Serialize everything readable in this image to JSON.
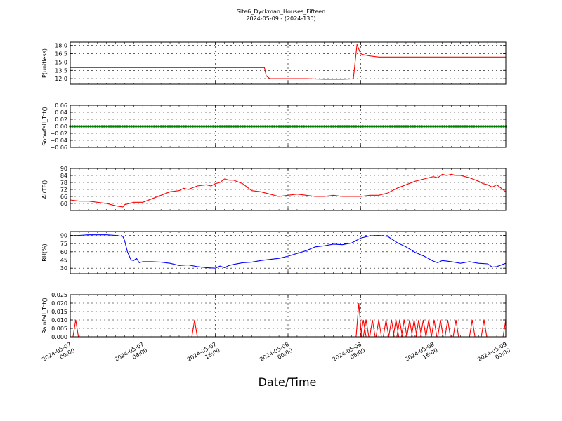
{
  "title_line1": "Site6_Dyckman_Houses_Fifteen",
  "title_line2": "2024-05-09 - (2024-130)",
  "xlabel": "Date/Time",
  "x_ticks": [
    {
      "t": 0,
      "label": [
        "2024-05-07",
        "00:00"
      ]
    },
    {
      "t": 8,
      "label": [
        "2024-05-07",
        "08:00"
      ]
    },
    {
      "t": 16,
      "label": [
        "2024-05-07",
        "16:00"
      ]
    },
    {
      "t": 24,
      "label": [
        "2024-05-08",
        "00:00"
      ]
    },
    {
      "t": 32,
      "label": [
        "2024-05-08",
        "08:00"
      ]
    },
    {
      "t": 40,
      "label": [
        "2024-05-08",
        "16:00"
      ]
    },
    {
      "t": 48,
      "label": [
        "2024-05-09",
        "00:00"
      ]
    }
  ],
  "chart_data": [
    {
      "type": "line",
      "ylabel": "P(unitless)",
      "ylim": [
        11.0,
        18.6
      ],
      "yticks": [
        "12.0",
        "13.5",
        "15.0",
        "16.5",
        "18.0"
      ],
      "ytick_values": [
        12.0,
        13.5,
        15.0,
        16.5,
        18.0
      ],
      "color": "#ff0000",
      "marker": "none",
      "x_unit": "hours from 2024-05-07 00:00",
      "x": [
        0,
        21.4,
        21.6,
        22,
        24,
        26,
        28,
        30,
        31,
        31.2,
        31.6,
        32,
        32.4,
        33,
        34,
        36,
        40,
        44,
        48
      ],
      "y": [
        14.0,
        14.0,
        12.5,
        12.0,
        12.0,
        12.0,
        11.9,
        11.9,
        11.95,
        12.0,
        18.2,
        16.5,
        16.3,
        16.1,
        15.9,
        15.9,
        15.9,
        15.9,
        15.9
      ]
    },
    {
      "type": "scatter",
      "ylabel": "Snowfall_Tot()",
      "ylim": [
        -0.06,
        0.06
      ],
      "yticks": [
        "0.06",
        "0.04",
        "0.02",
        "0.00",
        "−0.02",
        "−0.04",
        "−0.06"
      ],
      "ytick_values": [
        0.06,
        0.04,
        0.02,
        0.0,
        -0.02,
        -0.04,
        -0.06
      ],
      "color": "#008000",
      "marker": "dot",
      "x_unit": "hours from 2024-05-07 00:00",
      "constant_value": 0.0
    },
    {
      "type": "line",
      "ylabel": "AirTF()",
      "ylim": [
        54,
        90
      ],
      "yticks": [
        "60",
        "66",
        "72",
        "78",
        "84",
        "90"
      ],
      "ytick_values": [
        60,
        66,
        72,
        78,
        84,
        90
      ],
      "color": "#ff0000",
      "marker": "none",
      "x_unit": "hours from 2024-05-07 00:00",
      "x": [
        0,
        1,
        2,
        3,
        4,
        5,
        5.8,
        6,
        7,
        8,
        9,
        10,
        11,
        12,
        12.5,
        13,
        14,
        15,
        15.5,
        16,
        16.5,
        17,
        17.5,
        18,
        19,
        20,
        21,
        22,
        23,
        24,
        25,
        26,
        27,
        28,
        29,
        30,
        31,
        32,
        33,
        34,
        35,
        36,
        37,
        38,
        39,
        40,
        40.5,
        41,
        41.5,
        42,
        42.5,
        43,
        44,
        45,
        45.5,
        46,
        46.5,
        47,
        48
      ],
      "y": [
        63,
        62,
        62,
        61,
        60,
        58,
        57,
        59,
        61,
        61,
        64,
        67,
        70,
        71,
        73,
        72,
        75,
        76,
        75,
        77,
        78,
        81,
        80,
        80,
        77,
        71,
        70,
        68,
        66,
        67,
        68,
        67,
        66,
        66,
        67,
        66,
        66,
        66,
        67,
        67,
        69,
        73,
        76,
        79,
        81,
        83,
        82,
        85,
        84,
        85,
        84,
        84,
        82,
        79,
        77,
        76,
        74,
        76,
        70
      ]
    },
    {
      "type": "line",
      "ylabel": "RH(%)",
      "ylim": [
        20,
        97
      ],
      "yticks": [
        "30",
        "45",
        "60",
        "75",
        "90"
      ],
      "ytick_values": [
        30,
        45,
        60,
        75,
        90
      ],
      "color": "#0000ff",
      "marker": "none",
      "x_unit": "hours from 2024-05-07 00:00",
      "x": [
        0,
        1,
        2,
        3,
        4,
        5,
        5.8,
        6,
        6.3,
        6.7,
        7,
        7.3,
        7.6,
        8,
        9,
        10,
        11,
        12,
        13,
        14,
        15,
        16,
        16.5,
        17,
        17.5,
        18,
        19,
        20,
        21,
        22,
        23,
        24,
        25,
        26,
        27,
        28,
        29,
        30,
        31,
        32,
        33,
        34,
        35,
        36,
        37,
        38,
        39,
        40,
        40.5,
        41,
        42,
        43,
        44,
        45,
        46,
        46.5,
        47,
        48
      ],
      "y": [
        89,
        90,
        91,
        91,
        91,
        90,
        88,
        80,
        60,
        45,
        44,
        48,
        40,
        42,
        42,
        41,
        39,
        35,
        36,
        33,
        31,
        30,
        34,
        31,
        35,
        37,
        40,
        41,
        44,
        46,
        48,
        52,
        57,
        62,
        69,
        71,
        74,
        73,
        76,
        85,
        89,
        90,
        88,
        77,
        69,
        59,
        52,
        43,
        40,
        44,
        42,
        39,
        42,
        39,
        38,
        32,
        33,
        39
      ]
    },
    {
      "type": "line",
      "ylabel": "Rainfall_Tot()",
      "ylim": [
        0.0,
        0.025
      ],
      "yticks": [
        "0.025",
        "0.020",
        "0.015",
        "0.010",
        "0.005",
        "0.000"
      ],
      "ytick_values": [
        0.025,
        0.02,
        0.015,
        0.01,
        0.005,
        0.0
      ],
      "color": "#ff0000",
      "marker": "none",
      "x_unit": "hours from 2024-05-07 00:00",
      "spikes": [
        {
          "x": 0.6,
          "v": 0.01
        },
        {
          "x": 13.7,
          "v": 0.01
        },
        {
          "x": 31.8,
          "v": 0.02
        },
        {
          "x": 32.3,
          "v": 0.01
        },
        {
          "x": 32.6,
          "v": 0.01
        },
        {
          "x": 33.3,
          "v": 0.01
        },
        {
          "x": 34.0,
          "v": 0.01
        },
        {
          "x": 34.8,
          "v": 0.01
        },
        {
          "x": 35.4,
          "v": 0.01
        },
        {
          "x": 35.9,
          "v": 0.01
        },
        {
          "x": 36.3,
          "v": 0.01
        },
        {
          "x": 36.8,
          "v": 0.01
        },
        {
          "x": 37.4,
          "v": 0.01
        },
        {
          "x": 37.9,
          "v": 0.01
        },
        {
          "x": 38.4,
          "v": 0.01
        },
        {
          "x": 38.9,
          "v": 0.01
        },
        {
          "x": 39.5,
          "v": 0.01
        },
        {
          "x": 40.1,
          "v": 0.01
        },
        {
          "x": 40.8,
          "v": 0.01
        },
        {
          "x": 41.6,
          "v": 0.01
        },
        {
          "x": 42.5,
          "v": 0.01
        },
        {
          "x": 44.3,
          "v": 0.01
        },
        {
          "x": 45.6,
          "v": 0.01
        },
        {
          "x": 48.0,
          "v": 0.01
        }
      ]
    }
  ]
}
